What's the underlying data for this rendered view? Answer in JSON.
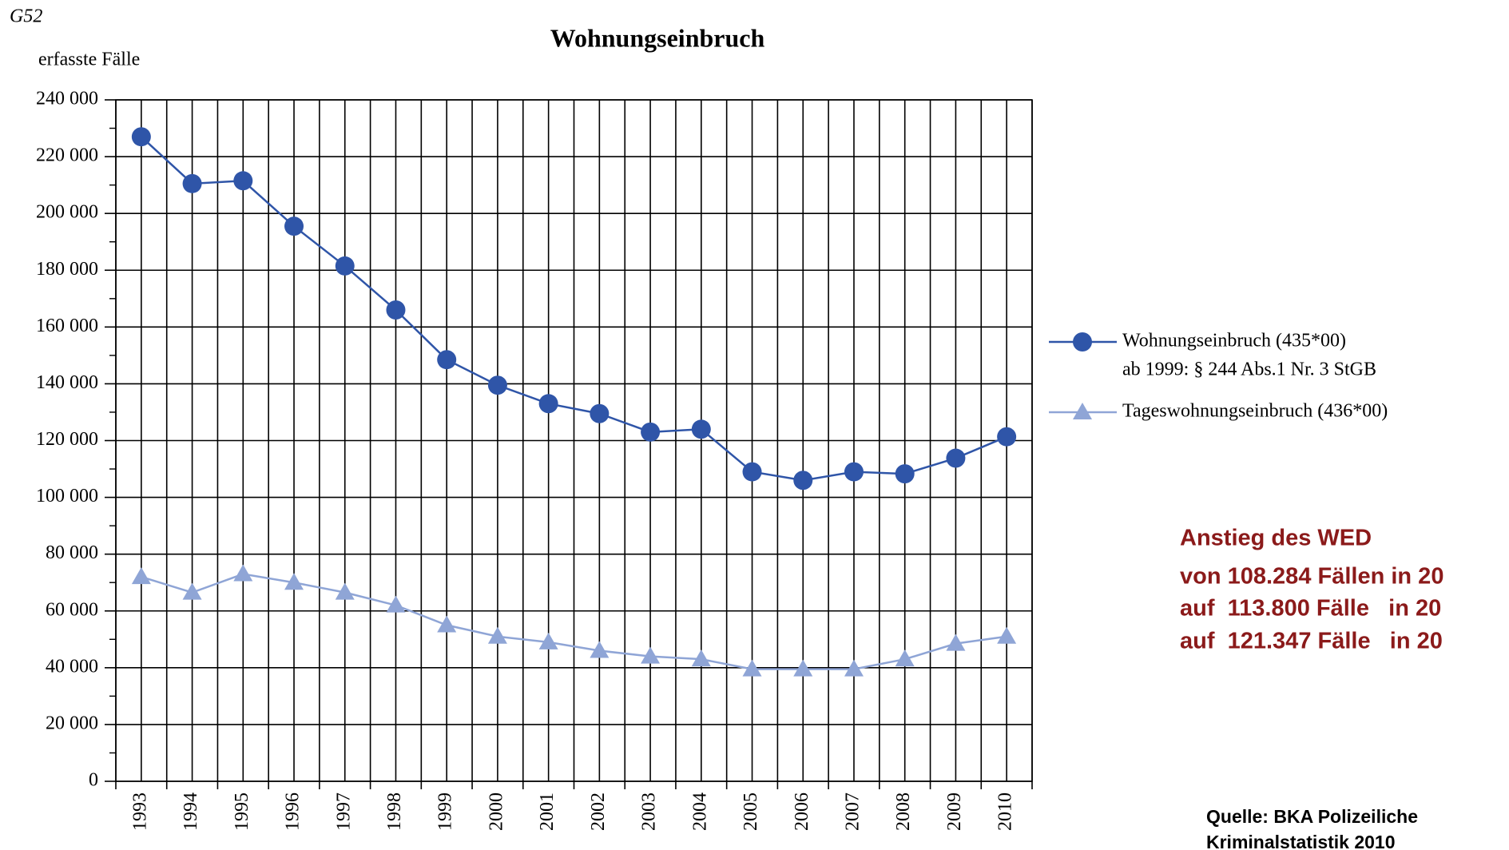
{
  "chart_data": {
    "type": "line",
    "figure_id": "G52",
    "title": "Wohnungseinbruch",
    "y_label": "erfasste Fälle",
    "categories": [
      "1993",
      "1994",
      "1995",
      "1996",
      "1997",
      "1998",
      "1999",
      "2000",
      "2001",
      "2002",
      "2003",
      "2004",
      "2005",
      "2006",
      "2007",
      "2008",
      "2009",
      "2010"
    ],
    "series": [
      {
        "name": "Wohnungseinbruch (435*00)",
        "note": "ab 1999: § 244 Abs.1 Nr. 3 StGB",
        "color": "#2f55a8",
        "marker": "circle",
        "values": [
          227000,
          210500,
          211500,
          195500,
          181500,
          166000,
          148500,
          139500,
          133000,
          129500,
          123000,
          124000,
          109000,
          106000,
          109000,
          108284,
          113800,
          121347
        ]
      },
      {
        "name": "Tageswohnungseinbruch (436*00)",
        "color": "#8fa5d6",
        "marker": "triangle",
        "values": [
          72000,
          66500,
          73000,
          70000,
          66500,
          62000,
          55000,
          51000,
          49000,
          46000,
          44000,
          43000,
          39500,
          39500,
          39500,
          43000,
          48500,
          51000
        ]
      }
    ],
    "ylim": [
      0,
      240000
    ],
    "yticks": [
      0,
      {
        "value": 20000,
        "label": "20 000"
      },
      {
        "value": 40000,
        "label": "40 000"
      },
      {
        "value": 60000,
        "label": "60 000"
      },
      {
        "value": 80000,
        "label": "80 000"
      },
      {
        "value": 100000,
        "label": "100 000"
      },
      {
        "value": 120000,
        "label": "120 000"
      },
      {
        "value": 140000,
        "label": "140 000"
      },
      {
        "value": 160000,
        "label": "160 000"
      },
      {
        "value": 180000,
        "label": "180 000"
      },
      {
        "value": 200000,
        "label": "200 000"
      },
      {
        "value": 220000,
        "label": "220 000"
      },
      {
        "value": 240000,
        "label": "240 000"
      }
    ],
    "minor_yticks": [
      10000,
      30000,
      50000,
      70000,
      90000,
      110000,
      130000,
      150000,
      170000,
      190000,
      210000,
      230000
    ],
    "grid": true,
    "legend": "right",
    "annotation": {
      "color": "#8b1a1a",
      "lines": [
        "Anstieg des WED",
        "von 108.284 Fällen in 20",
        "auf  113.800 Fälle   in 20",
        "auf  121.347 Fälle   in 20"
      ]
    },
    "source": [
      "Quelle: BKA Polizeiliche",
      "Kriminalstatistik 2010"
    ]
  }
}
